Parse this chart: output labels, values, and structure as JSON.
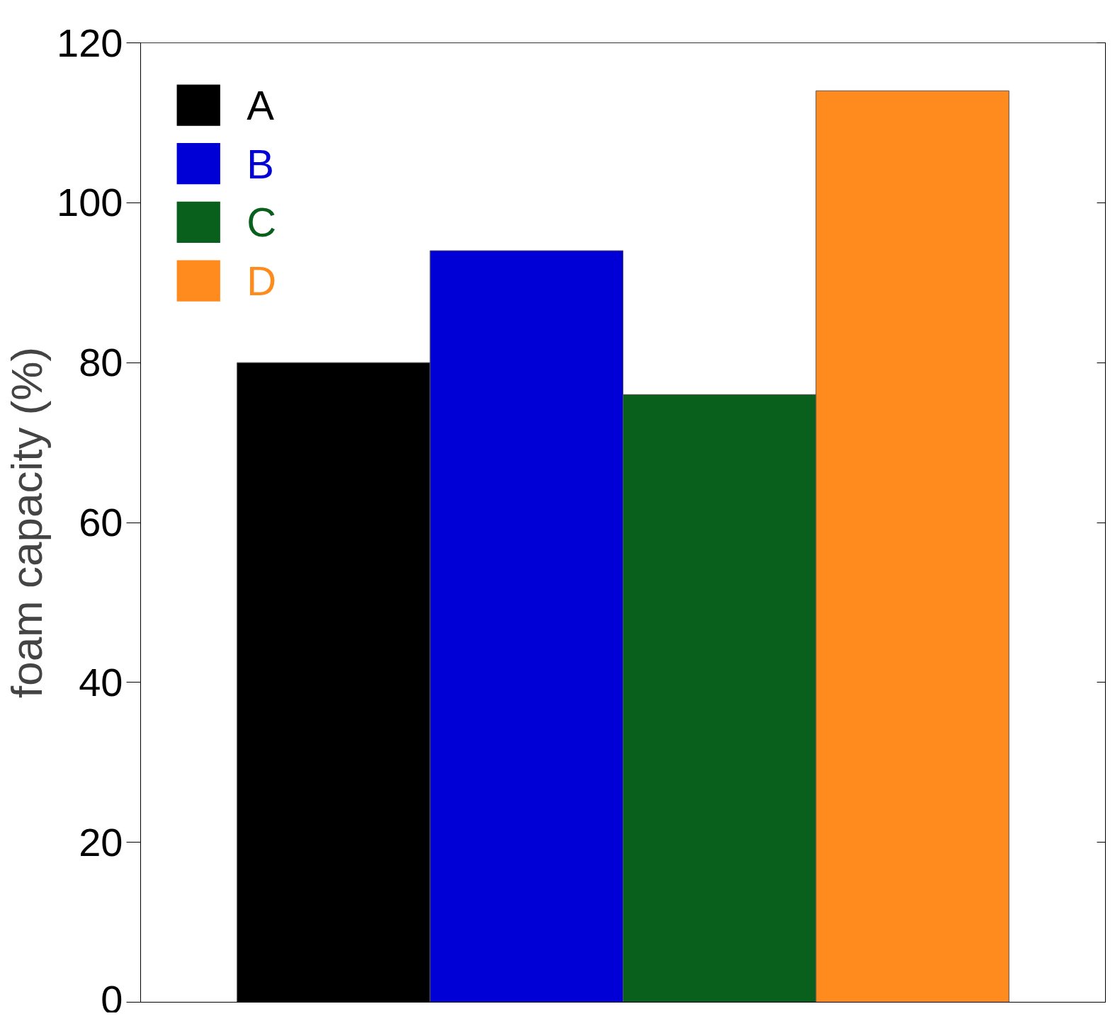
{
  "chart_data": {
    "type": "bar",
    "ylabel": "foam capacity (%)",
    "categories": [
      null
    ],
    "series": [
      {
        "name": "A",
        "color": "#000000",
        "values": [
          80
        ]
      },
      {
        "name": "B",
        "color": "#0000d6",
        "values": [
          94
        ]
      },
      {
        "name": "C",
        "color": "#08601c",
        "values": [
          76
        ]
      },
      {
        "name": "D",
        "color": "#ff8a1e",
        "values": [
          114
        ]
      }
    ],
    "ylim": [
      0,
      120
    ],
    "yticks": [
      0,
      20,
      40,
      60,
      80,
      100,
      120
    ],
    "legend": "top left",
    "tick_labels": "y",
    "grid": false
  }
}
